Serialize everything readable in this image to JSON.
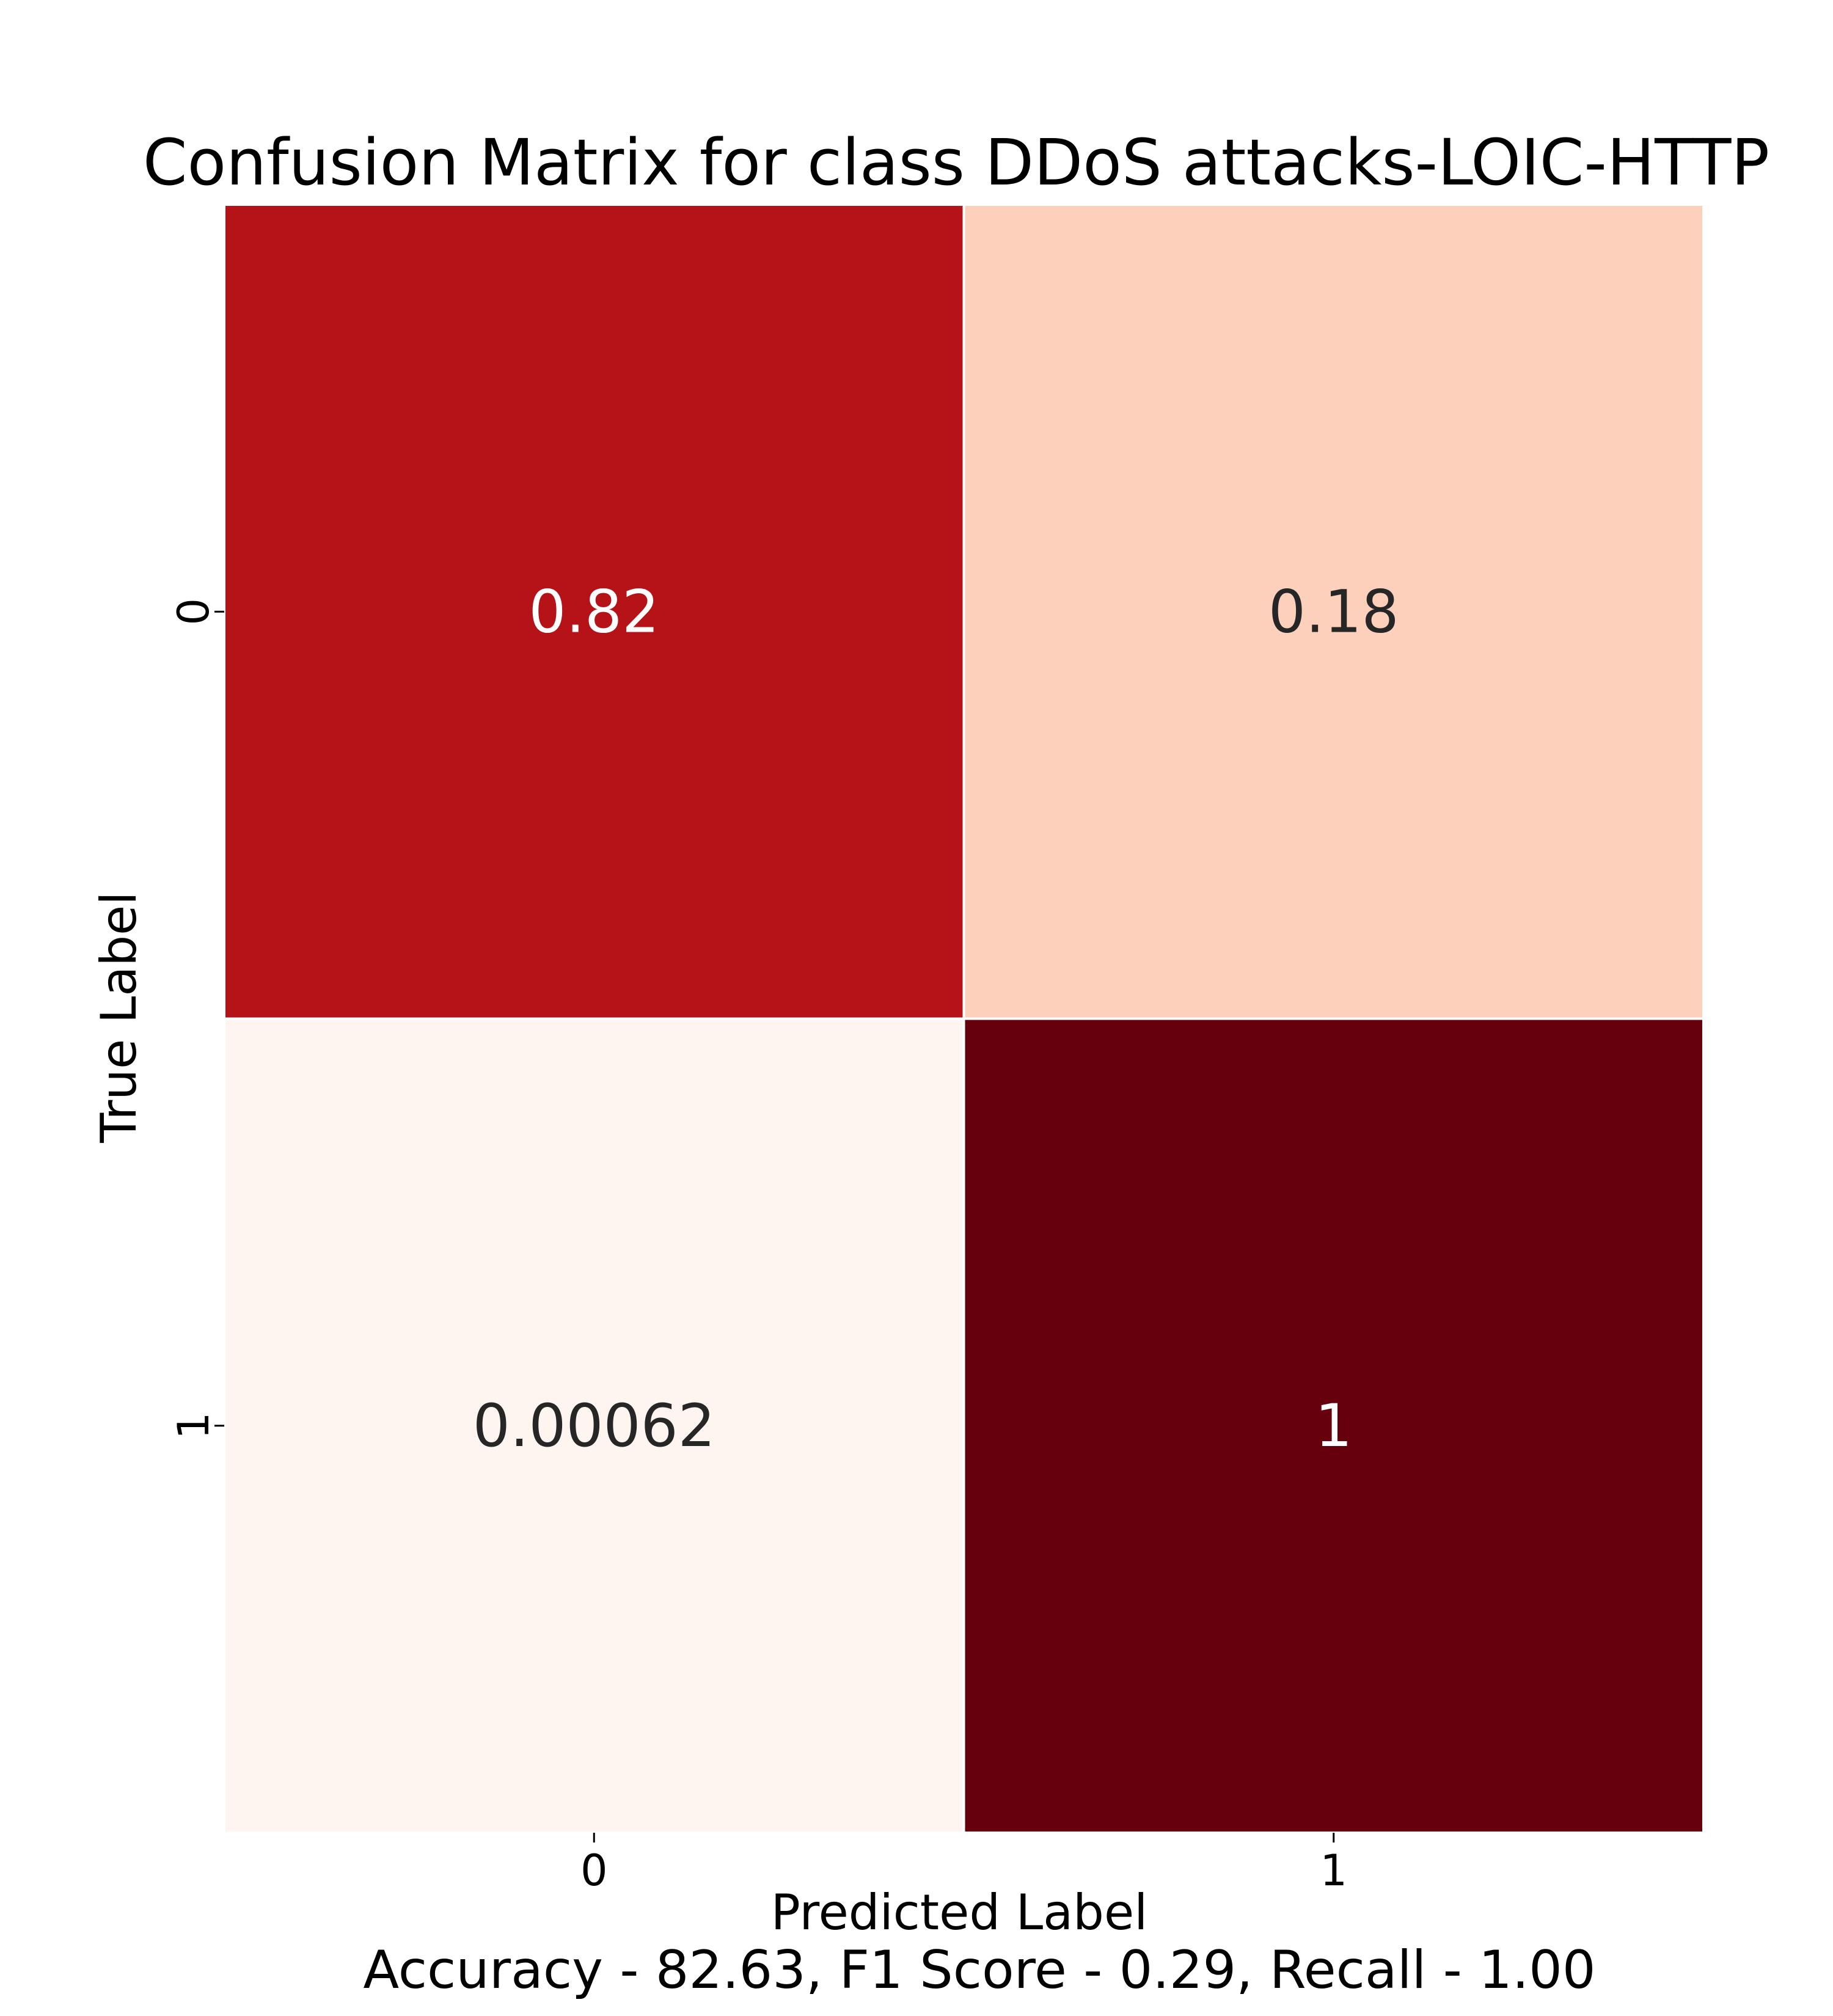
{
  "chart_data": {
    "type": "heatmap",
    "title": "Confusion Matrix for class DDoS attacks-LOIC-HTTP",
    "xlabel": "Predicted Label",
    "ylabel": "True Label",
    "x_tick_labels": [
      "0",
      "1"
    ],
    "y_tick_labels": [
      "0",
      "1"
    ],
    "matrix": [
      [
        0.82,
        0.18
      ],
      [
        0.00062,
        1
      ]
    ],
    "cell_labels": [
      [
        "0.82",
        "0.18"
      ],
      [
        "0.00062",
        "1"
      ]
    ],
    "colormap": "Reds",
    "value_range": [
      0,
      1
    ],
    "colorbar": false,
    "footer": "Accuracy - 82.63, F1 Score - 0.29, Recall - 1.00"
  },
  "colors": {
    "background": "#ffffff",
    "text": "#000000",
    "annotation_dark": "#262626",
    "annotation_light": "#ffffff",
    "cell_border": "#ffffff"
  }
}
